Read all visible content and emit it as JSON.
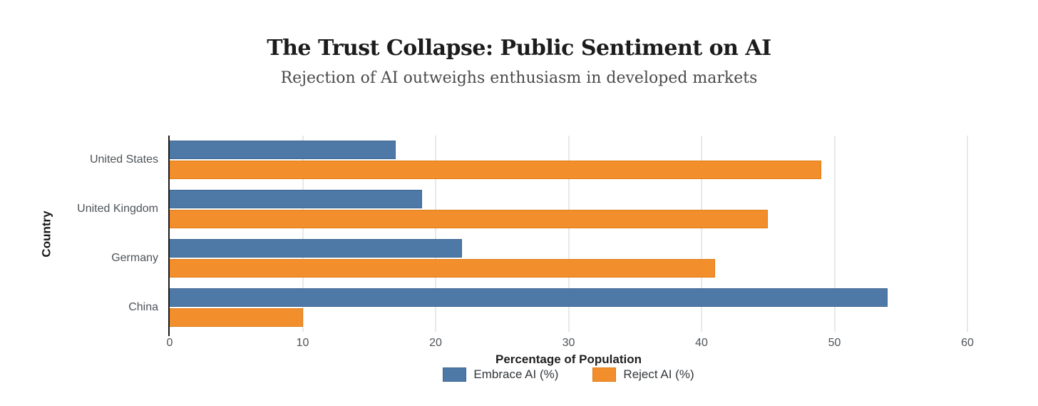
{
  "header": {
    "title": "The Trust Collapse: Public Sentiment on AI",
    "subtitle": "Rejection of AI outweighs enthusiasm in developed markets"
  },
  "chart_data": {
    "type": "bar",
    "orientation": "horizontal",
    "title": "The Trust Collapse: Public Sentiment on AI",
    "subtitle": "Rejection of AI outweighs enthusiasm in developed markets",
    "categories": [
      "United States",
      "United Kingdom",
      "Germany",
      "China"
    ],
    "series": [
      {
        "name": "Embrace AI (%)",
        "color": "#4e79a7",
        "border_color": "#3d6591",
        "values": [
          17,
          19,
          22,
          54
        ]
      },
      {
        "name": "Reject AI (%)",
        "color": "#f28e2b",
        "border_color": "#de7d16",
        "values": [
          49,
          45,
          41,
          10
        ]
      }
    ],
    "xlabel": "Percentage of Population",
    "ylabel": "Country",
    "xlim": [
      0,
      60
    ],
    "xticks": [
      0,
      10,
      20,
      30,
      40,
      50,
      60
    ],
    "grid": true,
    "gridline_color": "#e8e8e8",
    "legend_position": "bottom"
  }
}
